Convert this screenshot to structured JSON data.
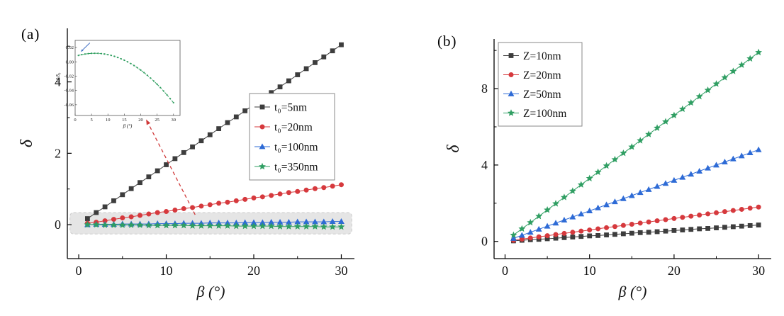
{
  "figure": {
    "background": "#ffffff",
    "panel_a_tag": "(a)",
    "panel_b_tag": "(b)"
  },
  "chart_data": [
    {
      "id": "panel-a",
      "type": "line",
      "title": "",
      "xlabel": "β (°)",
      "ylabel": "δ",
      "xlim": [
        -1.3,
        31.5
      ],
      "ylim": [
        -0.95,
        5.5
      ],
      "xticks": [
        0,
        10,
        20,
        30
      ],
      "yticks": [
        0,
        2,
        4
      ],
      "xminor": [
        5,
        15,
        25
      ],
      "yminor": [
        1,
        3,
        5
      ],
      "legend_position": "right-middle",
      "x": [
        1,
        2,
        3,
        4,
        5,
        6,
        7,
        8,
        9,
        10,
        11,
        12,
        13,
        14,
        15,
        16,
        17,
        18,
        19,
        20,
        21,
        22,
        23,
        24,
        25,
        26,
        27,
        28,
        29,
        30
      ],
      "series": [
        {
          "name": "t0-5nm",
          "label": "t₀=5nm",
          "color": "#3d3d3d",
          "marker": "square",
          "values": [
            0.17,
            0.34,
            0.5,
            0.67,
            0.84,
            1.01,
            1.18,
            1.34,
            1.51,
            1.68,
            1.85,
            2.02,
            2.18,
            2.35,
            2.52,
            2.69,
            2.86,
            3.02,
            3.19,
            3.36,
            3.53,
            3.7,
            3.86,
            4.03,
            4.2,
            4.37,
            4.54,
            4.7,
            4.87,
            5.04
          ]
        },
        {
          "name": "t0-20nm",
          "label": "t₀=20nm",
          "color": "#d6393d",
          "marker": "circle",
          "values": [
            0.04,
            0.07,
            0.11,
            0.15,
            0.19,
            0.22,
            0.26,
            0.3,
            0.34,
            0.37,
            0.41,
            0.45,
            0.48,
            0.52,
            0.56,
            0.6,
            0.63,
            0.67,
            0.71,
            0.75,
            0.78,
            0.82,
            0.86,
            0.9,
            0.93,
            0.97,
            1.01,
            1.04,
            1.08,
            1.12
          ]
        },
        {
          "name": "t0-100nm",
          "label": "t₀=100nm",
          "color": "#2e6bd6",
          "marker": "triangle",
          "values": [
            0.0,
            0.01,
            0.01,
            0.01,
            0.02,
            0.02,
            0.02,
            0.02,
            0.03,
            0.03,
            0.03,
            0.04,
            0.04,
            0.04,
            0.05,
            0.05,
            0.05,
            0.05,
            0.06,
            0.06,
            0.06,
            0.07,
            0.07,
            0.07,
            0.08,
            0.08,
            0.08,
            0.08,
            0.09,
            0.09
          ]
        },
        {
          "name": "t0-350nm",
          "label": "t₀=350nm",
          "color": "#2f9e62",
          "marker": "star",
          "values": [
            0.0,
            0.0,
            -0.01,
            -0.01,
            -0.01,
            -0.01,
            -0.01,
            -0.02,
            -0.02,
            -0.02,
            -0.02,
            -0.02,
            -0.03,
            -0.03,
            -0.03,
            -0.03,
            -0.03,
            -0.04,
            -0.04,
            -0.04,
            -0.04,
            -0.04,
            -0.05,
            -0.05,
            -0.05,
            -0.05,
            -0.05,
            -0.06,
            -0.06,
            -0.06
          ]
        }
      ],
      "highlight_band": {
        "x0": -1,
        "x1": 31.2,
        "y0": -0.26,
        "y1": 0.34,
        "fill": "#cccccc",
        "opacity": 0.5,
        "border": "#9a9a9a"
      },
      "inset": {
        "xlabel": "β (°)",
        "ylabel": "Δδ/δ₀",
        "xlim": [
          0,
          32
        ],
        "ylim": [
          -0.075,
          0.03
        ],
        "xticks": [
          0,
          5,
          10,
          15,
          20,
          25,
          30
        ],
        "yticks": [
          0.02,
          0,
          -0.02,
          -0.04,
          -0.06
        ],
        "decimals": 2,
        "color": "#2f9e5f",
        "arrow_color": "#4472c4",
        "values": [
          0.009,
          0.0101,
          0.0109,
          0.0115,
          0.0119,
          0.012,
          0.0119,
          0.0115,
          0.0109,
          0.0101,
          0.009,
          0.0077,
          0.0061,
          0.0043,
          0.0023,
          0.0,
          -0.0025,
          -0.0053,
          -0.0083,
          -0.0115,
          -0.015,
          -0.0187,
          -0.0227,
          -0.0269,
          -0.0313,
          -0.036,
          -0.0409,
          -0.0461,
          -0.0515,
          -0.0571
        ]
      },
      "arrow": {
        "from": [
          13.3,
          0.28
        ],
        "to": [
          7.7,
          2.95
        ],
        "color": "#d03a3a"
      }
    },
    {
      "id": "panel-b",
      "type": "line",
      "title": "",
      "xlabel": "β (°)",
      "ylabel": "δ",
      "xlim": [
        -1.3,
        31.5
      ],
      "ylim": [
        -0.9,
        10.6
      ],
      "xticks": [
        0,
        10,
        20,
        30
      ],
      "yticks": [
        0,
        4,
        8
      ],
      "xminor": [
        5,
        15,
        25
      ],
      "yminor": [
        2,
        6,
        10
      ],
      "legend_position": "top-left",
      "x": [
        1,
        2,
        3,
        4,
        5,
        6,
        7,
        8,
        9,
        10,
        11,
        12,
        13,
        14,
        15,
        16,
        17,
        18,
        19,
        20,
        21,
        22,
        23,
        24,
        25,
        26,
        27,
        28,
        29,
        30
      ],
      "series": [
        {
          "name": "Z-10nm",
          "label": "Z=10nm",
          "color": "#3d3d3d",
          "marker": "square",
          "values": [
            0.03,
            0.06,
            0.09,
            0.11,
            0.14,
            0.17,
            0.2,
            0.23,
            0.26,
            0.29,
            0.31,
            0.34,
            0.37,
            0.4,
            0.43,
            0.46,
            0.48,
            0.51,
            0.54,
            0.57,
            0.6,
            0.63,
            0.66,
            0.68,
            0.71,
            0.74,
            0.77,
            0.8,
            0.83,
            0.86
          ]
        },
        {
          "name": "Z-20nm",
          "label": "Z=20nm",
          "color": "#d6393d",
          "marker": "circle",
          "values": [
            0.06,
            0.12,
            0.18,
            0.24,
            0.3,
            0.36,
            0.42,
            0.48,
            0.54,
            0.6,
            0.66,
            0.72,
            0.78,
            0.84,
            0.9,
            0.96,
            1.02,
            1.08,
            1.14,
            1.2,
            1.26,
            1.32,
            1.38,
            1.44,
            1.5,
            1.56,
            1.62,
            1.68,
            1.74,
            1.8
          ]
        },
        {
          "name": "Z-50nm",
          "label": "Z=50nm",
          "color": "#2e6bd6",
          "marker": "triangle",
          "values": [
            0.16,
            0.32,
            0.48,
            0.64,
            0.8,
            0.96,
            1.12,
            1.28,
            1.44,
            1.6,
            1.76,
            1.92,
            2.08,
            2.24,
            2.4,
            2.56,
            2.72,
            2.88,
            3.04,
            3.2,
            3.36,
            3.52,
            3.68,
            3.84,
            4.0,
            4.16,
            4.32,
            4.48,
            4.64,
            4.8
          ]
        },
        {
          "name": "Z-100nm",
          "label": "Z=100nm",
          "color": "#2f9e62",
          "marker": "star",
          "values": [
            0.33,
            0.66,
            0.99,
            1.32,
            1.65,
            1.98,
            2.31,
            2.64,
            2.97,
            3.3,
            3.63,
            3.96,
            4.29,
            4.62,
            4.95,
            5.28,
            5.61,
            5.94,
            6.27,
            6.6,
            6.93,
            7.26,
            7.59,
            7.92,
            8.25,
            8.58,
            8.91,
            9.24,
            9.57,
            9.9
          ]
        }
      ]
    }
  ]
}
